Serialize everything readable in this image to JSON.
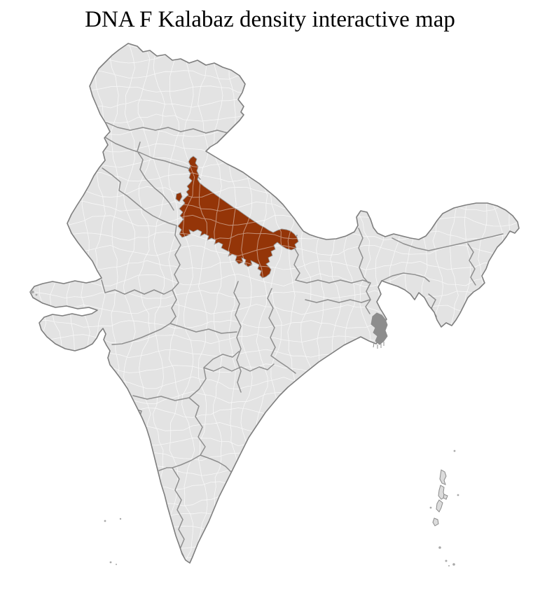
{
  "header": {
    "title": "DNA F Kalabaz density interactive map"
  },
  "map": {
    "colors": {
      "background": "#ffffff",
      "land": "#e3e3e3",
      "district_border": "#fafafa",
      "state_border": "#8a8a8a",
      "coast": "#7e7e7e",
      "highlight": "#943508",
      "delta_shade": "#8d8d8d",
      "island": "#dcdcdc"
    }
  }
}
